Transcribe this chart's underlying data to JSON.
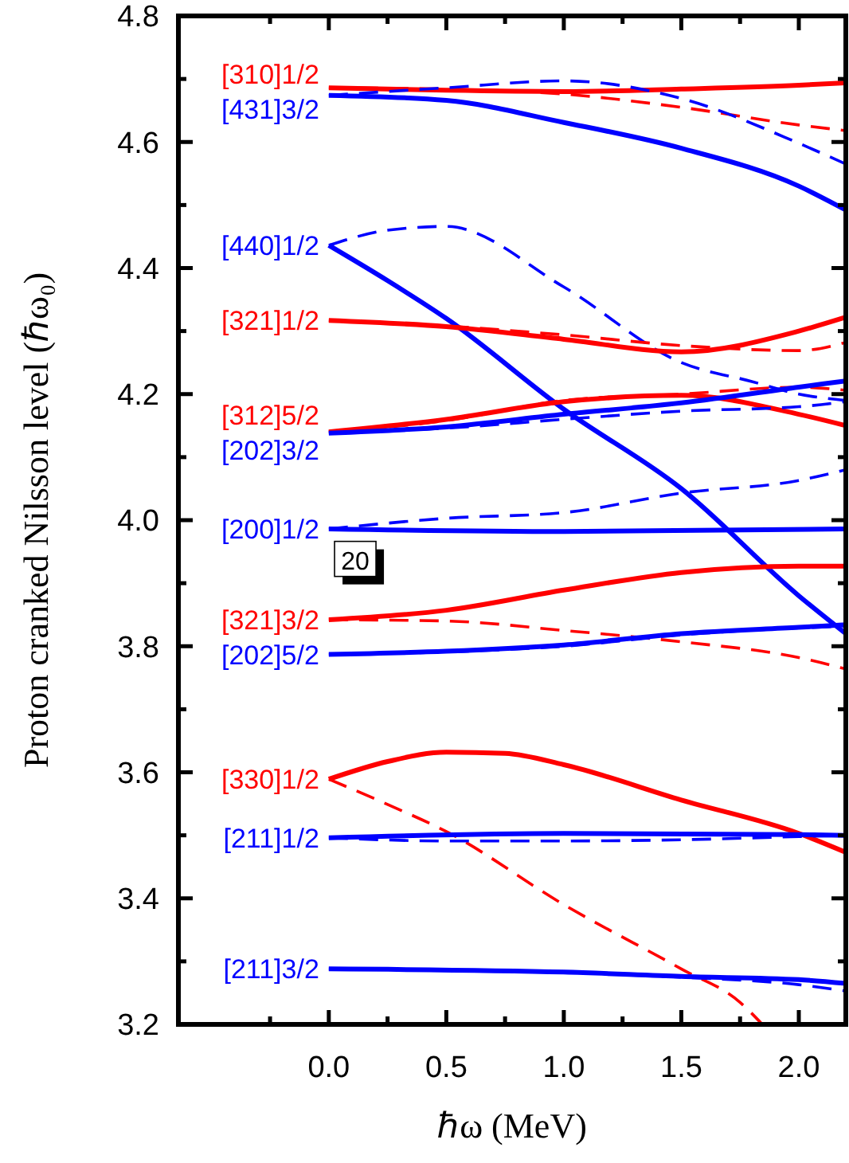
{
  "chart_data": {
    "type": "line",
    "xlabel": "ℏω (MeV)",
    "ylabel": "Proton cranked Nilsson level (ℏω₀)",
    "xlim": [
      -0.64,
      2.2
    ],
    "ylim": [
      3.2,
      4.8
    ],
    "xticks": [
      {
        "value": -0.25,
        "label": null
      },
      {
        "value": 0,
        "label": "0.0"
      },
      {
        "value": 0.25,
        "label": null
      },
      {
        "value": 0.5,
        "label": "0.5"
      },
      {
        "value": 0.75,
        "label": null
      },
      {
        "value": 1,
        "label": "1.0"
      },
      {
        "value": 1.25,
        "label": null
      },
      {
        "value": 1.5,
        "label": "1.5"
      },
      {
        "value": 1.75,
        "label": null
      },
      {
        "value": 2,
        "label": "2.0"
      }
    ],
    "yticks": [
      {
        "value": 3.2,
        "label": "3.2"
      },
      {
        "value": 3.3,
        "label": null
      },
      {
        "value": 3.4,
        "label": "3.4"
      },
      {
        "value": 3.5,
        "label": null
      },
      {
        "value": 3.6,
        "label": "3.6"
      },
      {
        "value": 3.7,
        "label": null
      },
      {
        "value": 3.8,
        "label": "3.8"
      },
      {
        "value": 3.9,
        "label": null
      },
      {
        "value": 4.0,
        "label": "4.0"
      },
      {
        "value": 4.1,
        "label": null
      },
      {
        "value": 4.2,
        "label": "4.2"
      },
      {
        "value": 4.3,
        "label": null
      },
      {
        "value": 4.4,
        "label": "4.4"
      },
      {
        "value": 4.5,
        "label": null
      },
      {
        "value": 4.6,
        "label": "4.6"
      },
      {
        "value": 4.7,
        "label": null
      },
      {
        "value": 4.8,
        "label": "4.8"
      }
    ],
    "annotations": [
      "20"
    ],
    "series": [
      {
        "name": "[310]1/2",
        "color": "#ff0000",
        "line_style": "solid",
        "x": [
          0,
          0.5,
          1,
          1.5,
          2,
          2.2
        ],
        "values": [
          4.686,
          4.682,
          4.68,
          4.684,
          4.69,
          4.694
        ]
      },
      {
        "color": "#ff0000",
        "line_style": "dashed",
        "x": [
          0,
          0.5,
          1,
          1.5,
          2,
          2.2
        ],
        "values": [
          4.686,
          4.684,
          4.676,
          4.655,
          4.627,
          4.618
        ]
      },
      {
        "name": "[431]3/2",
        "color": "#0000ff",
        "line_style": "solid",
        "x": [
          0,
          0.5,
          1,
          1.5,
          2,
          2.2
        ],
        "values": [
          4.674,
          4.666,
          4.631,
          4.59,
          4.53,
          4.492
        ]
      },
      {
        "color": "#0000ff",
        "line_style": "dashed",
        "x": [
          0,
          0.5,
          1,
          1.5,
          2,
          2.2
        ],
        "values": [
          4.674,
          4.686,
          4.697,
          4.669,
          4.598,
          4.565
        ]
      },
      {
        "name": "[440]1/2",
        "color": "#0000ff",
        "line_style": "solid",
        "x": [
          0,
          0.25,
          0.5,
          1,
          1.5,
          2,
          2.2
        ],
        "values": [
          4.436,
          4.38,
          4.32,
          4.176,
          4.05,
          3.88,
          3.82
        ]
      },
      {
        "color": "#0000ff",
        "line_style": "dashed",
        "x": [
          0,
          0.25,
          0.5,
          1,
          1.5,
          1.8,
          2,
          2.2
        ],
        "values": [
          4.436,
          4.46,
          4.466,
          4.37,
          4.25,
          4.22,
          4.2,
          4.19
        ]
      },
      {
        "name": "[321]1/2",
        "color": "#ff0000",
        "line_style": "solid",
        "x": [
          0,
          0.5,
          1,
          1.5,
          2,
          2.2
        ],
        "values": [
          4.317,
          4.307,
          4.287,
          4.267,
          4.3,
          4.322
        ]
      },
      {
        "color": "#ff0000",
        "line_style": "dashed",
        "x": [
          0,
          0.5,
          1,
          1.5,
          2,
          2.2
        ],
        "values": [
          4.317,
          4.308,
          4.294,
          4.277,
          4.269,
          4.282
        ]
      },
      {
        "name": "[312]5/2",
        "color": "#ff0000",
        "line_style": "solid",
        "x": [
          0,
          0.5,
          1,
          1.5,
          2,
          2.2
        ],
        "values": [
          4.14,
          4.16,
          4.188,
          4.198,
          4.168,
          4.15
        ]
      },
      {
        "color": "#ff0000",
        "line_style": "dashed",
        "x": [
          0,
          0.5,
          1,
          1.5,
          2,
          2.2
        ],
        "values": [
          4.14,
          4.158,
          4.19,
          4.2,
          4.211,
          4.206
        ]
      },
      {
        "name": "[202]3/2",
        "color": "#0000ff",
        "line_style": "solid",
        "x": [
          0,
          0.5,
          1,
          1.5,
          2,
          2.2
        ],
        "values": [
          4.138,
          4.148,
          4.168,
          4.186,
          4.211,
          4.221
        ]
      },
      {
        "color": "#0000ff",
        "line_style": "dashed",
        "x": [
          0,
          0.5,
          1,
          1.5,
          2,
          2.2
        ],
        "values": [
          4.138,
          4.146,
          4.16,
          4.173,
          4.18,
          4.188
        ]
      },
      {
        "name": "[200]1/2",
        "color": "#0000ff",
        "line_style": "solid",
        "x": [
          0,
          1,
          2.2
        ],
        "values": [
          3.986,
          3.982,
          3.986
        ]
      },
      {
        "color": "#0000ff",
        "line_style": "dashed",
        "x": [
          0,
          0.5,
          1,
          1.5,
          2,
          2.2
        ],
        "values": [
          3.986,
          4.003,
          4.012,
          4.043,
          4.063,
          4.08
        ]
      },
      {
        "name": "[321]3/2",
        "color": "#ff0000",
        "line_style": "solid",
        "x": [
          0,
          0.5,
          1,
          1.5,
          2,
          2.2
        ],
        "values": [
          3.842,
          3.857,
          3.889,
          3.917,
          3.927,
          3.927
        ]
      },
      {
        "color": "#ff0000",
        "line_style": "dashed",
        "x": [
          0,
          0.5,
          1,
          1.5,
          2,
          2.2
        ],
        "values": [
          3.842,
          3.84,
          3.825,
          3.807,
          3.782,
          3.764
        ]
      },
      {
        "name": "[202]5/2",
        "color": "#0000ff",
        "line_style": "solid",
        "x": [
          0,
          0.5,
          1,
          1.5,
          2,
          2.2
        ],
        "values": [
          3.787,
          3.792,
          3.802,
          3.82,
          3.83,
          3.834
        ]
      },
      {
        "color": "#0000ff",
        "line_style": "dashed",
        "x": [
          0,
          0.5,
          1,
          1.5,
          2,
          2.2
        ],
        "values": [
          3.787,
          3.791,
          3.8,
          3.818,
          3.829,
          3.832
        ]
      },
      {
        "name": "[330]1/2",
        "color": "#ff0000",
        "line_style": "solid",
        "x": [
          0,
          0.25,
          0.5,
          0.75,
          1,
          1.5,
          2,
          2.2
        ],
        "values": [
          3.589,
          3.617,
          3.632,
          3.63,
          3.612,
          3.556,
          3.503,
          3.473
        ]
      },
      {
        "color": "#ff0000",
        "line_style": "dashed",
        "x": [
          0,
          0.25,
          0.5,
          1,
          1.5,
          1.75,
          1.845
        ],
        "values": [
          3.589,
          3.549,
          3.506,
          3.39,
          3.288,
          3.235,
          3.2
        ]
      },
      {
        "name": "[211]1/2",
        "color": "#0000ff",
        "line_style": "solid",
        "x": [
          0,
          1,
          2,
          2.2
        ],
        "values": [
          3.496,
          3.503,
          3.501,
          3.5
        ]
      },
      {
        "color": "#0000ff",
        "line_style": "dashed",
        "x": [
          0,
          0.5,
          1,
          1.5,
          2,
          2.2
        ],
        "values": [
          3.496,
          3.491,
          3.491,
          3.493,
          3.498,
          3.5
        ]
      },
      {
        "name": "[211]3/2",
        "color": "#0000ff",
        "line_style": "solid",
        "x": [
          0,
          1,
          1.5,
          2,
          2.2
        ],
        "values": [
          3.288,
          3.283,
          3.276,
          3.271,
          3.265
        ]
      },
      {
        "color": "#0000ff",
        "line_style": "dashed",
        "x": [
          0,
          1,
          1.5,
          2,
          2.2
        ],
        "values": [
          3.288,
          3.283,
          3.275,
          3.263,
          3.253
        ]
      }
    ]
  }
}
